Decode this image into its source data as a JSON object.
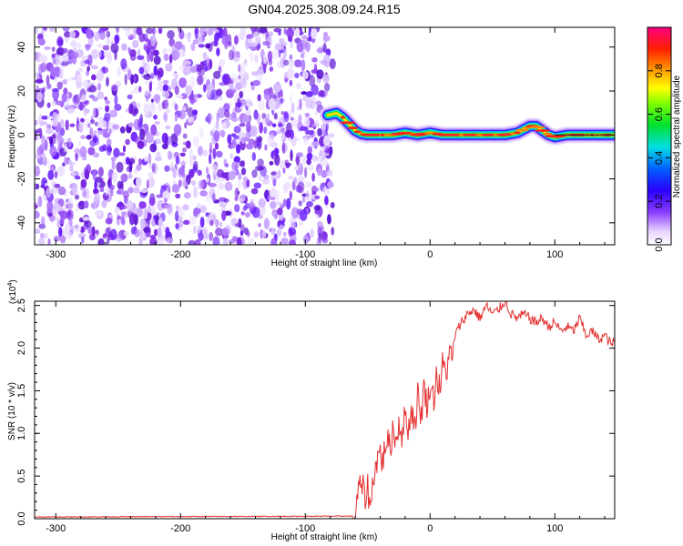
{
  "title": "GN04.2025.308.09.24.R15",
  "chart_data": [
    {
      "type": "heatmap",
      "name": "spectrogram",
      "xlabel": "Height of straight line (km)",
      "ylabel": "Frequency (Hz)",
      "xlim": [
        -317,
        148
      ],
      "ylim": [
        -50,
        49
      ],
      "xticks": [
        -300,
        -200,
        -100,
        0,
        100
      ],
      "yticks": [
        -40,
        -20,
        0,
        20,
        40
      ],
      "xtick_labels": [
        "-300",
        "-200",
        "-100",
        "0",
        "100"
      ],
      "ytick_labels": [
        "-40",
        "-20",
        "0",
        "20",
        "40"
      ],
      "noise_region_x": [
        -317,
        -78
      ],
      "signal_track": {
        "x": [
          -82,
          -75,
          -70,
          -65,
          -60,
          -55,
          -50,
          -40,
          -30,
          -20,
          -10,
          0,
          10,
          20,
          30,
          40,
          50,
          60,
          70,
          80,
          85,
          90,
          95,
          100,
          110,
          120,
          130,
          140,
          148
        ],
        "y": [
          9,
          10,
          8,
          5,
          2,
          0.5,
          0,
          0,
          0,
          1,
          0,
          1,
          0,
          0,
          0,
          0,
          0,
          0,
          1,
          4,
          4,
          2,
          0,
          -1,
          0,
          0,
          0,
          0,
          0
        ]
      },
      "colorbar": {
        "label": "Normalized spectral amplitude",
        "range": [
          0.0,
          1.0
        ],
        "ticks": [
          0.0,
          0.2,
          0.4,
          0.6,
          0.8
        ],
        "tick_labels": [
          "0.0",
          "0.2",
          "0.4",
          "0.6",
          "0.8"
        ]
      }
    },
    {
      "type": "line",
      "name": "snr",
      "xlabel": "Height of straight line (km)",
      "ylabel": "SNR (10 * v/v)",
      "y_multiplier": "(x10",
      "y_multiplier_exp": "4",
      "y_multiplier_close": ")",
      "xlim": [
        -317,
        148
      ],
      "ylim": [
        0,
        2.55
      ],
      "xticks": [
        -300,
        -200,
        -100,
        0,
        100
      ],
      "yticks": [
        0.0,
        0.5,
        1.0,
        1.5,
        2.0,
        2.5
      ],
      "xtick_labels": [
        "-300",
        "-200",
        "-100",
        "0",
        "100"
      ],
      "ytick_labels": [
        "0.0",
        "0.5",
        "1.0",
        "1.5",
        "2.0",
        "2.5"
      ],
      "line_color": "#e53030",
      "series": [
        {
          "name": "SNR",
          "x": [
            -317,
            -60,
            -58,
            -55,
            -52,
            -50,
            -48,
            -45,
            -42,
            -40,
            -38,
            -35,
            -32,
            -30,
            -27,
            -25,
            -22,
            -20,
            -17,
            -15,
            -12,
            -10,
            -7,
            -5,
            -2,
            0,
            3,
            5,
            8,
            10,
            13,
            15,
            18,
            20,
            25,
            30,
            35,
            40,
            45,
            50,
            55,
            60,
            65,
            70,
            75,
            80,
            85,
            90,
            95,
            100,
            105,
            110,
            115,
            120,
            125,
            130,
            135,
            140,
            145,
            148
          ],
          "y": [
            0.02,
            0.03,
            0.3,
            0.4,
            0.25,
            0.38,
            0.1,
            0.55,
            0.7,
            0.8,
            0.65,
            0.95,
            0.8,
            1.05,
            0.9,
            1.15,
            0.95,
            1.25,
            1.05,
            1.3,
            1.1,
            1.45,
            1.2,
            1.55,
            1.3,
            1.6,
            1.4,
            1.7,
            1.5,
            1.8,
            1.7,
            1.95,
            1.85,
            2.15,
            2.3,
            2.4,
            2.45,
            2.35,
            2.5,
            2.4,
            2.45,
            2.55,
            2.4,
            2.35,
            2.4,
            2.35,
            2.3,
            2.35,
            2.25,
            2.3,
            2.2,
            2.25,
            2.2,
            2.35,
            2.15,
            2.2,
            2.1,
            2.15,
            2.05,
            2.08
          ]
        }
      ]
    }
  ]
}
